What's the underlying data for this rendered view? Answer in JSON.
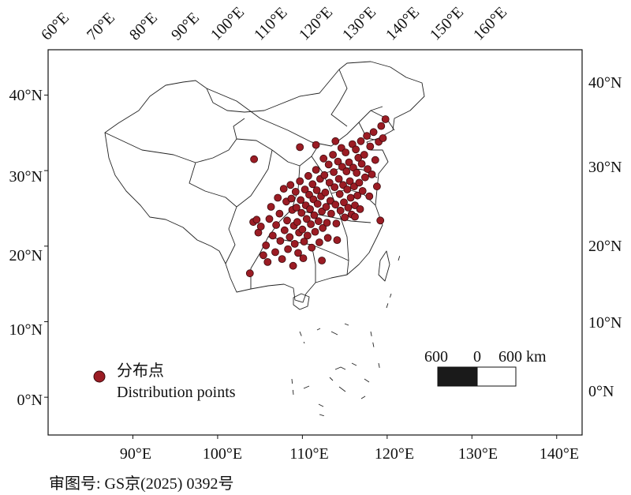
{
  "map": {
    "frame_lon": [
      80,
      143
    ],
    "frame_lat": [
      -5,
      46
    ],
    "point_color": "#9b1c24",
    "point_stroke": "#3a0a0d",
    "boundary_color": "#222222"
  },
  "axes": {
    "top_ticks": [
      "60°E",
      "70°E",
      "80°E",
      "90°E",
      "100°E",
      "110°E",
      "120°E",
      "130°E",
      "140°E",
      "150°E",
      "160°E"
    ],
    "left_ticks": [
      "40°N",
      "30°N",
      "20°N",
      "10°N",
      "0°N"
    ],
    "right_ticks": [
      "40°N",
      "30°N",
      "20°N",
      "10°N",
      "0°N"
    ],
    "bottom_ticks": [
      "90°E",
      "100°E",
      "110°E",
      "120°E",
      "130°E",
      "140°E"
    ]
  },
  "legend": {
    "label_zh": "分布点",
    "label_en": "Distribution points"
  },
  "scale_bar": {
    "left_label": "600",
    "mid_label": "0",
    "right_label": "600 km"
  },
  "approval_number": "审图号: GS京(2025) 0392号",
  "distribution_points": [
    [
      103.8,
      16.4
    ],
    [
      104.2,
      23.2
    ],
    [
      104.6,
      23.5
    ],
    [
      104.8,
      21.8
    ],
    [
      104.3,
      31.5
    ],
    [
      105.1,
      22.6
    ],
    [
      105.4,
      18.8
    ],
    [
      105.7,
      20.1
    ],
    [
      105.9,
      17.9
    ],
    [
      106.1,
      23.6
    ],
    [
      106.3,
      25.2
    ],
    [
      106.5,
      21.4
    ],
    [
      106.8,
      19.2
    ],
    [
      106.9,
      22.8
    ],
    [
      107.1,
      26.4
    ],
    [
      107.3,
      24.3
    ],
    [
      107.4,
      20.7
    ],
    [
      107.6,
      18.3
    ],
    [
      107.8,
      27.6
    ],
    [
      107.9,
      22.1
    ],
    [
      108.1,
      25.9
    ],
    [
      108.2,
      23.4
    ],
    [
      108.3,
      19.6
    ],
    [
      108.5,
      21.2
    ],
    [
      108.6,
      28.1
    ],
    [
      108.7,
      26.3
    ],
    [
      108.8,
      24.8
    ],
    [
      108.9,
      17.4
    ],
    [
      109.0,
      22.7
    ],
    [
      109.1,
      20.3
    ],
    [
      109.2,
      27.2
    ],
    [
      109.3,
      25.1
    ],
    [
      109.4,
      23.2
    ],
    [
      109.5,
      19.1
    ],
    [
      109.6,
      21.8
    ],
    [
      109.7,
      28.6
    ],
    [
      109.8,
      26.1
    ],
    [
      109.9,
      24.4
    ],
    [
      110.0,
      22.2
    ],
    [
      110.1,
      18.4
    ],
    [
      110.2,
      20.6
    ],
    [
      110.3,
      27.5
    ],
    [
      110.4,
      25.4
    ],
    [
      110.5,
      23.6
    ],
    [
      110.6,
      21.4
    ],
    [
      110.7,
      29.3
    ],
    [
      110.8,
      26.8
    ],
    [
      110.9,
      24.9
    ],
    [
      111.0,
      22.9
    ],
    [
      111.1,
      19.8
    ],
    [
      111.2,
      28.2
    ],
    [
      111.3,
      26.2
    ],
    [
      111.4,
      24.1
    ],
    [
      111.5,
      21.9
    ],
    [
      111.6,
      30.1
    ],
    [
      111.7,
      27.4
    ],
    [
      111.8,
      25.6
    ],
    [
      111.9,
      23.3
    ],
    [
      112.0,
      20.5
    ],
    [
      112.1,
      28.9
    ],
    [
      112.2,
      26.6
    ],
    [
      112.3,
      24.6
    ],
    [
      112.4,
      22.4
    ],
    [
      112.5,
      31.6
    ],
    [
      112.6,
      29.4
    ],
    [
      112.7,
      27.1
    ],
    [
      112.8,
      25.2
    ],
    [
      112.9,
      23.1
    ],
    [
      113.0,
      21.1
    ],
    [
      113.1,
      30.8
    ],
    [
      113.2,
      28.4
    ],
    [
      113.3,
      26.0
    ],
    [
      113.4,
      24.3
    ],
    [
      113.6,
      32.1
    ],
    [
      113.7,
      29.8
    ],
    [
      113.8,
      27.8
    ],
    [
      113.9,
      25.5
    ],
    [
      114.0,
      23.0
    ],
    [
      114.1,
      20.8
    ],
    [
      114.2,
      31.2
    ],
    [
      114.3,
      28.9
    ],
    [
      114.4,
      26.9
    ],
    [
      114.5,
      24.7
    ],
    [
      114.6,
      33.0
    ],
    [
      114.7,
      30.5
    ],
    [
      114.8,
      28.1
    ],
    [
      114.9,
      25.8
    ],
    [
      115.0,
      23.8
    ],
    [
      115.1,
      32.4
    ],
    [
      115.2,
      29.9
    ],
    [
      115.3,
      27.5
    ],
    [
      115.4,
      25.1
    ],
    [
      115.5,
      31.1
    ],
    [
      115.6,
      28.6
    ],
    [
      115.7,
      26.4
    ],
    [
      115.8,
      24.2
    ],
    [
      115.9,
      33.5
    ],
    [
      116.0,
      30.4
    ],
    [
      116.1,
      27.9
    ],
    [
      116.2,
      25.4
    ],
    [
      116.3,
      32.8
    ],
    [
      116.4,
      29.7
    ],
    [
      116.5,
      26.7
    ],
    [
      116.6,
      31.7
    ],
    [
      116.7,
      28.4
    ],
    [
      116.8,
      24.9
    ],
    [
      116.9,
      33.9
    ],
    [
      117.0,
      30.9
    ],
    [
      117.1,
      27.3
    ],
    [
      117.3,
      32.1
    ],
    [
      117.4,
      29.1
    ],
    [
      117.6,
      34.6
    ],
    [
      117.7,
      30.2
    ],
    [
      117.9,
      26.6
    ],
    [
      118.0,
      33.2
    ],
    [
      118.2,
      29.5
    ],
    [
      118.4,
      35.1
    ],
    [
      118.6,
      31.4
    ],
    [
      118.8,
      27.9
    ],
    [
      119.0,
      33.8
    ],
    [
      119.2,
      23.4
    ],
    [
      119.3,
      35.9
    ],
    [
      119.5,
      34.3
    ],
    [
      119.8,
      36.8
    ],
    [
      112.3,
      18.1
    ],
    [
      111.6,
      33.4
    ],
    [
      113.9,
      33.9
    ],
    [
      116.2,
      23.9
    ],
    [
      109.7,
      33.1
    ]
  ]
}
